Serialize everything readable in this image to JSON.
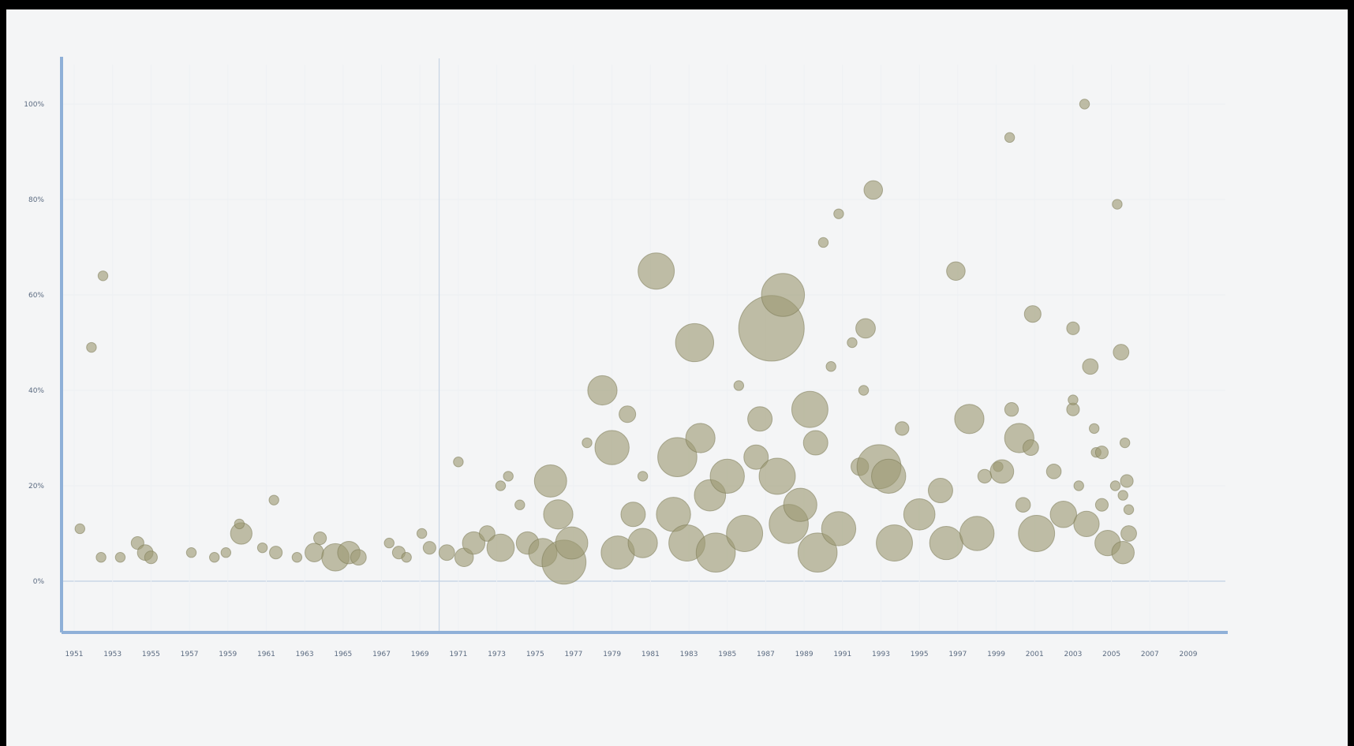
{
  "chart_data": {
    "type": "scatter",
    "title": "",
    "xlabel": "",
    "ylabel": "",
    "xlim": [
      1951,
      2010
    ],
    "ylim": [
      -10,
      110
    ],
    "grid": true,
    "x_ticks": [
      "1951",
      "1953",
      "1955",
      "1957",
      "1959",
      "1961",
      "1963",
      "1965",
      "1967",
      "1969",
      "1971",
      "1973",
      "1975",
      "1977",
      "1979",
      "1981",
      "1983",
      "1985",
      "1987",
      "1989",
      "1991",
      "1993",
      "1995",
      "1997",
      "1999",
      "2001",
      "2003",
      "2005",
      "2007",
      "2009"
    ],
    "y_ticks": [
      {
        "value": 0,
        "label": "0%"
      },
      {
        "value": 20,
        "label": "20%"
      },
      {
        "value": 40,
        "label": "40%"
      },
      {
        "value": 60,
        "label": "60%"
      },
      {
        "value": 80,
        "label": "80%"
      },
      {
        "value": 100,
        "label": "100%"
      }
    ],
    "reference_line_x": 1970,
    "bubble_color": "#9c9a72",
    "bubble_stroke": "#7c7a55",
    "series": [
      {
        "points": [
          {
            "x": 1951.3,
            "y": 11,
            "r": 1
          },
          {
            "x": 1951.9,
            "y": 49,
            "r": 1
          },
          {
            "x": 1952.5,
            "y": 64,
            "r": 1
          },
          {
            "x": 1952.4,
            "y": 5,
            "r": 1
          },
          {
            "x": 1953.4,
            "y": 5,
            "r": 1
          },
          {
            "x": 1954.3,
            "y": 8,
            "r": 1.3
          },
          {
            "x": 1954.7,
            "y": 6,
            "r": 1.6
          },
          {
            "x": 1955.0,
            "y": 5,
            "r": 1.3
          },
          {
            "x": 1957.1,
            "y": 6,
            "r": 1
          },
          {
            "x": 1958.3,
            "y": 5,
            "r": 1
          },
          {
            "x": 1958.9,
            "y": 6,
            "r": 1
          },
          {
            "x": 1959.7,
            "y": 10,
            "r": 2.2
          },
          {
            "x": 1959.6,
            "y": 12,
            "r": 1
          },
          {
            "x": 1960.8,
            "y": 7,
            "r": 1
          },
          {
            "x": 1961.4,
            "y": 17,
            "r": 1
          },
          {
            "x": 1961.5,
            "y": 6,
            "r": 1.3
          },
          {
            "x": 1962.6,
            "y": 5,
            "r": 1
          },
          {
            "x": 1963.5,
            "y": 6,
            "r": 1.9
          },
          {
            "x": 1963.8,
            "y": 9,
            "r": 1.3
          },
          {
            "x": 1964.6,
            "y": 5,
            "r": 2.8
          },
          {
            "x": 1965.3,
            "y": 6,
            "r": 2.3
          },
          {
            "x": 1965.8,
            "y": 5,
            "r": 1.6
          },
          {
            "x": 1967.4,
            "y": 8,
            "r": 1
          },
          {
            "x": 1967.9,
            "y": 6,
            "r": 1.3
          },
          {
            "x": 1968.3,
            "y": 5,
            "r": 1
          },
          {
            "x": 1969.1,
            "y": 10,
            "r": 1
          },
          {
            "x": 1969.5,
            "y": 7,
            "r": 1.3
          },
          {
            "x": 1970.4,
            "y": 6,
            "r": 1.6
          },
          {
            "x": 1971.0,
            "y": 25,
            "r": 1
          },
          {
            "x": 1971.3,
            "y": 5,
            "r": 1.9
          },
          {
            "x": 1971.8,
            "y": 8,
            "r": 2.3
          },
          {
            "x": 1972.5,
            "y": 10,
            "r": 1.6
          },
          {
            "x": 1973.2,
            "y": 20,
            "r": 1
          },
          {
            "x": 1973.6,
            "y": 22,
            "r": 1
          },
          {
            "x": 1973.2,
            "y": 7,
            "r": 2.8
          },
          {
            "x": 1974.2,
            "y": 16,
            "r": 1
          },
          {
            "x": 1974.6,
            "y": 8,
            "r": 2.3
          },
          {
            "x": 1975.4,
            "y": 6,
            "r": 2.9
          },
          {
            "x": 1975.8,
            "y": 21,
            "r": 3.3
          },
          {
            "x": 1976.2,
            "y": 14,
            "r": 3
          },
          {
            "x": 1976.5,
            "y": 4,
            "r": 4.5
          },
          {
            "x": 1976.9,
            "y": 8,
            "r": 3.3
          },
          {
            "x": 1977.7,
            "y": 29,
            "r": 1
          },
          {
            "x": 1978.5,
            "y": 40,
            "r": 3
          },
          {
            "x": 1979.0,
            "y": 28,
            "r": 3.5
          },
          {
            "x": 1979.8,
            "y": 35,
            "r": 1.7
          },
          {
            "x": 1980.6,
            "y": 22,
            "r": 1
          },
          {
            "x": 1979.3,
            "y": 6,
            "r": 3.4
          },
          {
            "x": 1980.1,
            "y": 14,
            "r": 2.5
          },
          {
            "x": 1980.6,
            "y": 8,
            "r": 3
          },
          {
            "x": 1981.3,
            "y": 65,
            "r": 3.7
          },
          {
            "x": 1982.4,
            "y": 26,
            "r": 4
          },
          {
            "x": 1982.2,
            "y": 14,
            "r": 3.5
          },
          {
            "x": 1982.9,
            "y": 8,
            "r": 3.7
          },
          {
            "x": 1983.3,
            "y": 50,
            "r": 3.9
          },
          {
            "x": 1983.6,
            "y": 30,
            "r": 3
          },
          {
            "x": 1984.1,
            "y": 18,
            "r": 3.2
          },
          {
            "x": 1984.4,
            "y": 6,
            "r": 4
          },
          {
            "x": 1985.0,
            "y": 22,
            "r": 3.5
          },
          {
            "x": 1985.6,
            "y": 41,
            "r": 1
          },
          {
            "x": 1985.9,
            "y": 10,
            "r": 3.7
          },
          {
            "x": 1986.5,
            "y": 26,
            "r": 2.5
          },
          {
            "x": 1986.7,
            "y": 34,
            "r": 2.5
          },
          {
            "x": 1987.3,
            "y": 53,
            "r": 6.7
          },
          {
            "x": 1987.9,
            "y": 60,
            "r": 4.4
          },
          {
            "x": 1987.6,
            "y": 22,
            "r": 3.7
          },
          {
            "x": 1988.2,
            "y": 12,
            "r": 4
          },
          {
            "x": 1988.8,
            "y": 16,
            "r": 3.4
          },
          {
            "x": 1989.3,
            "y": 36,
            "r": 3.7
          },
          {
            "x": 1989.6,
            "y": 29,
            "r": 2.5
          },
          {
            "x": 1990.0,
            "y": 71,
            "r": 1
          },
          {
            "x": 1990.4,
            "y": 45,
            "r": 1
          },
          {
            "x": 1990.8,
            "y": 77,
            "r": 1
          },
          {
            "x": 1989.7,
            "y": 6,
            "r": 4
          },
          {
            "x": 1990.8,
            "y": 11,
            "r": 3.5
          },
          {
            "x": 1991.5,
            "y": 50,
            "r": 1
          },
          {
            "x": 1992.1,
            "y": 40,
            "r": 1
          },
          {
            "x": 1992.2,
            "y": 53,
            "r": 2
          },
          {
            "x": 1992.6,
            "y": 82,
            "r": 1.9
          },
          {
            "x": 1991.9,
            "y": 24,
            "r": 1.8
          },
          {
            "x": 1992.9,
            "y": 24,
            "r": 4.5
          },
          {
            "x": 1993.4,
            "y": 22,
            "r": 3.5
          },
          {
            "x": 1994.1,
            "y": 32,
            "r": 1.4
          },
          {
            "x": 1993.7,
            "y": 8,
            "r": 3.7
          },
          {
            "x": 1995.0,
            "y": 14,
            "r": 3.2
          },
          {
            "x": 1996.1,
            "y": 19,
            "r": 2.5
          },
          {
            "x": 1996.4,
            "y": 8,
            "r": 3.4
          },
          {
            "x": 1996.9,
            "y": 65,
            "r": 1.9
          },
          {
            "x": 1997.6,
            "y": 34,
            "r": 3
          },
          {
            "x": 1998.4,
            "y": 22,
            "r": 1.4
          },
          {
            "x": 1998.0,
            "y": 10,
            "r": 3.5
          },
          {
            "x": 1999.1,
            "y": 24,
            "r": 1
          },
          {
            "x": 1999.3,
            "y": 23,
            "r": 2.4
          },
          {
            "x": 1999.7,
            "y": 93,
            "r": 1
          },
          {
            "x": 1999.8,
            "y": 36,
            "r": 1.4
          },
          {
            "x": 2000.2,
            "y": 30,
            "r": 3
          },
          {
            "x": 2000.4,
            "y": 16,
            "r": 1.5
          },
          {
            "x": 2000.8,
            "y": 28,
            "r": 1.6
          },
          {
            "x": 2000.9,
            "y": 56,
            "r": 1.7
          },
          {
            "x": 2001.1,
            "y": 10,
            "r": 3.7
          },
          {
            "x": 2002.0,
            "y": 23,
            "r": 1.5
          },
          {
            "x": 2002.5,
            "y": 14,
            "r": 2.7
          },
          {
            "x": 2003.0,
            "y": 53,
            "r": 1.3
          },
          {
            "x": 2003.0,
            "y": 36,
            "r": 1.3
          },
          {
            "x": 2003.0,
            "y": 38,
            "r": 1
          },
          {
            "x": 2003.3,
            "y": 20,
            "r": 1
          },
          {
            "x": 2003.6,
            "y": 100,
            "r": 1
          },
          {
            "x": 2003.9,
            "y": 45,
            "r": 1.6
          },
          {
            "x": 2003.7,
            "y": 12,
            "r": 2.6
          },
          {
            "x": 2004.1,
            "y": 32,
            "r": 1
          },
          {
            "x": 2004.2,
            "y": 27,
            "r": 1
          },
          {
            "x": 2004.5,
            "y": 27,
            "r": 1.3
          },
          {
            "x": 2004.5,
            "y": 16,
            "r": 1.3
          },
          {
            "x": 2005.3,
            "y": 79,
            "r": 1
          },
          {
            "x": 2005.2,
            "y": 20,
            "r": 1
          },
          {
            "x": 2005.5,
            "y": 48,
            "r": 1.6
          },
          {
            "x": 2005.7,
            "y": 29,
            "r": 1
          },
          {
            "x": 2005.6,
            "y": 18,
            "r": 1
          },
          {
            "x": 2005.9,
            "y": 15,
            "r": 1
          },
          {
            "x": 2005.8,
            "y": 21,
            "r": 1.3
          },
          {
            "x": 2004.8,
            "y": 8,
            "r": 2.6
          },
          {
            "x": 2005.6,
            "y": 6,
            "r": 2.3
          },
          {
            "x": 2005.9,
            "y": 10,
            "r": 1.6
          }
        ]
      }
    ]
  }
}
